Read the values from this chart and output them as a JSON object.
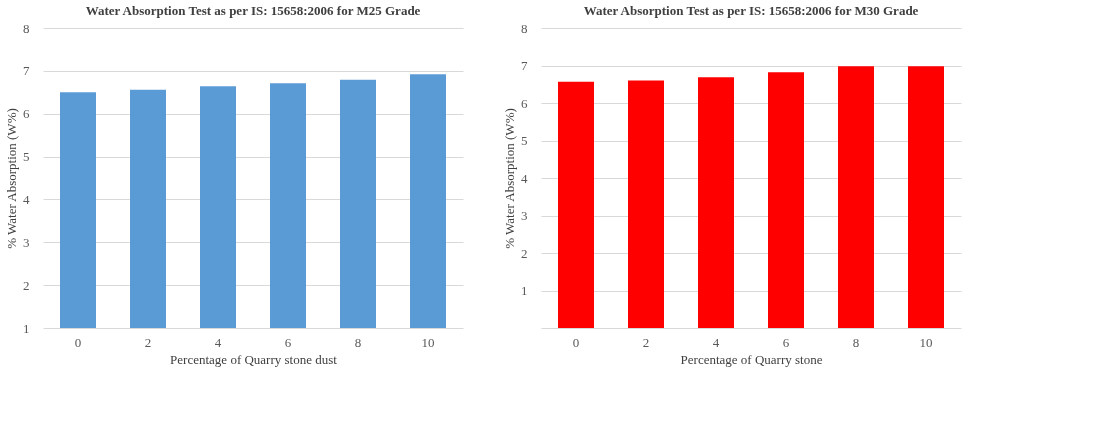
{
  "chart_data": [
    {
      "type": "bar",
      "title": "Water Absorption Test as per IS: 15658:2006 for M25 Grade",
      "xlabel": "Percentage of Quarry stone dust",
      "ylabel": "% Water Absorption (W%)",
      "categories": [
        "0",
        "2",
        "4",
        "6",
        "8",
        "10"
      ],
      "series": [
        {
          "color": "#5b9bd5",
          "values": [
            6.5,
            6.56,
            6.64,
            6.71,
            6.79,
            6.92
          ]
        }
      ],
      "ylim": [
        1,
        8
      ],
      "yticks": [
        1,
        2,
        3,
        4,
        5,
        6,
        7,
        8
      ],
      "grid": "y",
      "legend": false
    },
    {
      "type": "bar",
      "title": "Water Absorption Test as per IS: 15658:2006 for M30 Grade",
      "xlabel": "Percentage of Quarry stone",
      "ylabel": "% Water Absorption (W%)",
      "categories": [
        "0",
        "2",
        "4",
        "6",
        "8",
        "10"
      ],
      "series": [
        {
          "color": "#ff0000",
          "values": [
            6.57,
            6.6,
            6.69,
            6.82,
            6.98,
            6.98
          ]
        }
      ],
      "ylim": [
        0,
        8
      ],
      "yticks": [
        {
          "value": 0,
          "label": null
        },
        1,
        2,
        3,
        4,
        5,
        6,
        7,
        8
      ],
      "grid": "y",
      "legend": false
    }
  ]
}
